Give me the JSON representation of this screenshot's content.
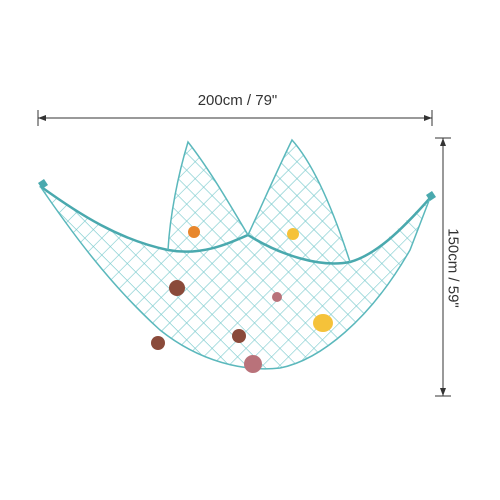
{
  "product": {
    "width_label": "200cm / 79\"",
    "height_label": "150cm / 59\""
  },
  "colors": {
    "net": "#68c3c6",
    "net_dark": "#4aa9ae",
    "dimension_line": "#333333",
    "shell_orange": "#e8862c",
    "shell_yellow": "#f5c23a",
    "shell_brown": "#8a4a3a",
    "shell_pink": "#b9727a"
  },
  "shells": [
    {
      "name": "scallop-orange-small",
      "color": "orange"
    },
    {
      "name": "scallop-yellow-top",
      "color": "yellow"
    },
    {
      "name": "scallop-brown-left",
      "color": "brown"
    },
    {
      "name": "scallop-pink-center",
      "color": "pink"
    },
    {
      "name": "scallop-yellow-large",
      "color": "yellow"
    },
    {
      "name": "scallop-brown-lower-left",
      "color": "brown"
    },
    {
      "name": "scallop-brown-center",
      "color": "brown"
    },
    {
      "name": "scallop-pink-bottom",
      "color": "pink"
    }
  ]
}
